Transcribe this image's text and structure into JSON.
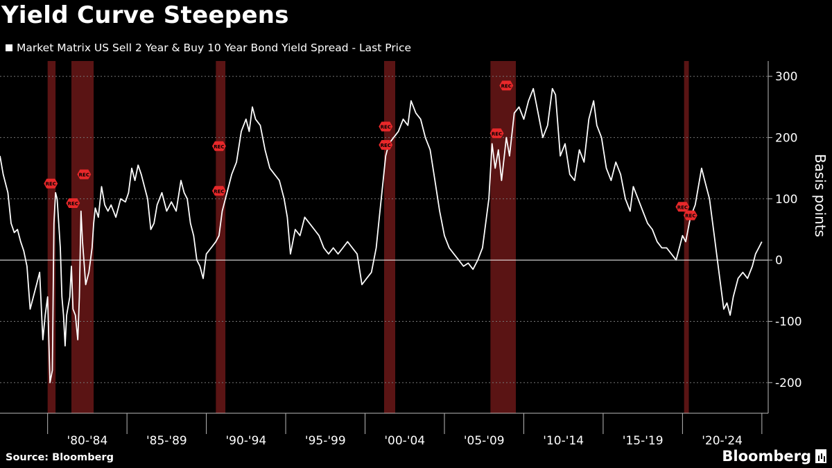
{
  "title": "Yield Curve Steepens",
  "source": "Source: Bloomberg",
  "brand": "Bloomberg",
  "chart_data": {
    "type": "line",
    "title": "Yield Curve Steepens",
    "ylabel": "Basis points",
    "ylim": [
      -250,
      325
    ],
    "yticks": [
      -200,
      -100,
      0,
      100,
      200,
      300
    ],
    "xlim": [
      1977,
      2025.4
    ],
    "x_tick_labels": [
      "'80-'84",
      "'85-'89",
      "'90-'94",
      "'95-'99",
      "'00-'04",
      "'05-'09",
      "'10-'14",
      "'15-'19",
      "'20-'24"
    ],
    "x_tick_boundaries": [
      1980,
      1985,
      1990,
      1995,
      2000,
      2005,
      2010,
      2015,
      2020,
      2025
    ],
    "grid": "horizontal dotted",
    "axis_side": "right",
    "colors": {
      "line": "#ffffff",
      "recession": "#5a1414",
      "marker": "#e8282a",
      "background": "#000000"
    },
    "series": [
      {
        "name": "Market Matrix US Sell 2 Year & Buy 10 Year Bond Yield Spread - Last Price",
        "points": [
          [
            1977.0,
            170
          ],
          [
            1977.2,
            140
          ],
          [
            1977.5,
            110
          ],
          [
            1977.7,
            60
          ],
          [
            1977.9,
            45
          ],
          [
            1978.1,
            50
          ],
          [
            1978.3,
            30
          ],
          [
            1978.5,
            15
          ],
          [
            1978.7,
            -10
          ],
          [
            1978.9,
            -80
          ],
          [
            1979.1,
            -60
          ],
          [
            1979.3,
            -40
          ],
          [
            1979.5,
            -20
          ],
          [
            1979.7,
            -130
          ],
          [
            1979.85,
            -90
          ],
          [
            1980.0,
            -60
          ],
          [
            1980.15,
            -200
          ],
          [
            1980.3,
            -180
          ],
          [
            1980.4,
            60
          ],
          [
            1980.5,
            110
          ],
          [
            1980.6,
            100
          ],
          [
            1980.8,
            20
          ],
          [
            1980.9,
            -60
          ],
          [
            1981.0,
            -90
          ],
          [
            1981.1,
            -140
          ],
          [
            1981.2,
            -90
          ],
          [
            1981.4,
            -60
          ],
          [
            1981.5,
            -10
          ],
          [
            1981.6,
            -80
          ],
          [
            1981.75,
            -90
          ],
          [
            1981.9,
            -130
          ],
          [
            1982.0,
            -60
          ],
          [
            1982.1,
            80
          ],
          [
            1982.2,
            30
          ],
          [
            1982.4,
            -40
          ],
          [
            1982.6,
            -20
          ],
          [
            1982.8,
            20
          ],
          [
            1982.9,
            60
          ],
          [
            1983.0,
            85
          ],
          [
            1983.2,
            70
          ],
          [
            1983.4,
            120
          ],
          [
            1983.6,
            90
          ],
          [
            1983.8,
            80
          ],
          [
            1984.0,
            90
          ],
          [
            1984.3,
            70
          ],
          [
            1984.6,
            100
          ],
          [
            1984.9,
            95
          ],
          [
            1985.1,
            110
          ],
          [
            1985.3,
            150
          ],
          [
            1985.5,
            130
          ],
          [
            1985.7,
            155
          ],
          [
            1985.9,
            140
          ],
          [
            1986.1,
            120
          ],
          [
            1986.3,
            100
          ],
          [
            1986.5,
            50
          ],
          [
            1986.7,
            60
          ],
          [
            1986.9,
            90
          ],
          [
            1987.2,
            110
          ],
          [
            1987.5,
            80
          ],
          [
            1987.8,
            95
          ],
          [
            1988.1,
            80
          ],
          [
            1988.4,
            130
          ],
          [
            1988.6,
            110
          ],
          [
            1988.8,
            100
          ],
          [
            1989.0,
            60
          ],
          [
            1989.2,
            40
          ],
          [
            1989.4,
            0
          ],
          [
            1989.6,
            -10
          ],
          [
            1989.8,
            -30
          ],
          [
            1990.0,
            10
          ],
          [
            1990.3,
            20
          ],
          [
            1990.6,
            30
          ],
          [
            1990.8,
            40
          ],
          [
            1991.0,
            80
          ],
          [
            1991.3,
            110
          ],
          [
            1991.6,
            140
          ],
          [
            1991.9,
            160
          ],
          [
            1992.2,
            210
          ],
          [
            1992.5,
            230
          ],
          [
            1992.7,
            210
          ],
          [
            1992.9,
            250
          ],
          [
            1993.1,
            230
          ],
          [
            1993.4,
            220
          ],
          [
            1993.7,
            180
          ],
          [
            1994.0,
            150
          ],
          [
            1994.3,
            140
          ],
          [
            1994.6,
            130
          ],
          [
            1994.9,
            100
          ],
          [
            1995.1,
            70
          ],
          [
            1995.3,
            10
          ],
          [
            1995.6,
            50
          ],
          [
            1995.9,
            40
          ],
          [
            1996.2,
            70
          ],
          [
            1996.5,
            60
          ],
          [
            1996.8,
            50
          ],
          [
            1997.1,
            40
          ],
          [
            1997.4,
            20
          ],
          [
            1997.7,
            10
          ],
          [
            1998.0,
            20
          ],
          [
            1998.3,
            10
          ],
          [
            1998.6,
            20
          ],
          [
            1998.9,
            30
          ],
          [
            1999.2,
            20
          ],
          [
            1999.5,
            10
          ],
          [
            1999.8,
            -40
          ],
          [
            2000.1,
            -30
          ],
          [
            2000.4,
            -20
          ],
          [
            2000.7,
            20
          ],
          [
            2000.9,
            70
          ],
          [
            2001.1,
            120
          ],
          [
            2001.3,
            170
          ],
          [
            2001.5,
            190
          ],
          [
            2001.8,
            200
          ],
          [
            2002.1,
            210
          ],
          [
            2002.4,
            230
          ],
          [
            2002.7,
            220
          ],
          [
            2002.9,
            260
          ],
          [
            2003.2,
            240
          ],
          [
            2003.5,
            230
          ],
          [
            2003.8,
            200
          ],
          [
            2004.1,
            180
          ],
          [
            2004.4,
            130
          ],
          [
            2004.7,
            80
          ],
          [
            2005.0,
            40
          ],
          [
            2005.3,
            20
          ],
          [
            2005.6,
            10
          ],
          [
            2005.9,
            0
          ],
          [
            2006.2,
            -10
          ],
          [
            2006.5,
            -5
          ],
          [
            2006.8,
            -15
          ],
          [
            2007.1,
            0
          ],
          [
            2007.4,
            20
          ],
          [
            2007.6,
            60
          ],
          [
            2007.8,
            100
          ],
          [
            2008.0,
            190
          ],
          [
            2008.2,
            150
          ],
          [
            2008.4,
            180
          ],
          [
            2008.6,
            130
          ],
          [
            2008.9,
            200
          ],
          [
            2009.1,
            170
          ],
          [
            2009.4,
            240
          ],
          [
            2009.7,
            250
          ],
          [
            2010.0,
            230
          ],
          [
            2010.3,
            260
          ],
          [
            2010.6,
            280
          ],
          [
            2010.9,
            240
          ],
          [
            2011.2,
            200
          ],
          [
            2011.5,
            220
          ],
          [
            2011.8,
            280
          ],
          [
            2012.0,
            270
          ],
          [
            2012.3,
            170
          ],
          [
            2012.6,
            190
          ],
          [
            2012.9,
            140
          ],
          [
            2013.2,
            130
          ],
          [
            2013.5,
            180
          ],
          [
            2013.8,
            160
          ],
          [
            2014.1,
            230
          ],
          [
            2014.4,
            260
          ],
          [
            2014.6,
            220
          ],
          [
            2014.9,
            200
          ],
          [
            2015.2,
            150
          ],
          [
            2015.5,
            130
          ],
          [
            2015.8,
            160
          ],
          [
            2016.1,
            140
          ],
          [
            2016.4,
            100
          ],
          [
            2016.7,
            80
          ],
          [
            2016.9,
            120
          ],
          [
            2017.2,
            100
          ],
          [
            2017.5,
            80
          ],
          [
            2017.8,
            60
          ],
          [
            2018.1,
            50
          ],
          [
            2018.4,
            30
          ],
          [
            2018.7,
            20
          ],
          [
            2019.0,
            20
          ],
          [
            2019.3,
            10
          ],
          [
            2019.6,
            0
          ],
          [
            2019.8,
            20
          ],
          [
            2020.0,
            40
          ],
          [
            2020.2,
            30
          ],
          [
            2020.5,
            70
          ],
          [
            2020.8,
            90
          ],
          [
            2021.0,
            120
          ],
          [
            2021.2,
            150
          ],
          [
            2021.4,
            130
          ],
          [
            2021.7,
            100
          ],
          [
            2022.0,
            40
          ],
          [
            2022.2,
            0
          ],
          [
            2022.4,
            -40
          ],
          [
            2022.6,
            -80
          ],
          [
            2022.8,
            -70
          ],
          [
            2023.0,
            -90
          ],
          [
            2023.2,
            -60
          ],
          [
            2023.5,
            -30
          ],
          [
            2023.8,
            -20
          ],
          [
            2024.1,
            -30
          ],
          [
            2024.4,
            -10
          ],
          [
            2024.6,
            10
          ],
          [
            2024.8,
            20
          ],
          [
            2025.0,
            30
          ]
        ]
      }
    ],
    "recessions": [
      [
        1980.0,
        1980.5
      ],
      [
        1981.5,
        1982.9
      ],
      [
        1990.6,
        1991.2
      ],
      [
        2001.2,
        2001.9
      ],
      [
        2007.9,
        2009.5
      ],
      [
        2020.1,
        2020.4
      ]
    ],
    "rec_markers": [
      {
        "x": 1980.2,
        "y": 125,
        "label": "REC"
      },
      [
        1981.6,
        93,
        "REC"
      ],
      [
        1982.3,
        140,
        "REC"
      ],
      {
        "x": 1990.8,
        "y": 186,
        "label": "REC"
      },
      {
        "x": 1990.8,
        "y": 113,
        "label": "REC"
      },
      {
        "x": 2001.3,
        "y": 218,
        "label": "REC"
      },
      {
        "x": 2001.3,
        "y": 188,
        "label": "REC"
      },
      {
        "x": 2008.3,
        "y": 207,
        "label": "REC"
      },
      {
        "x": 2008.9,
        "y": 285,
        "label": "REC"
      },
      {
        "x": 2020.0,
        "y": 87,
        "label": "REC"
      },
      {
        "x": 2020.5,
        "y": 73,
        "label": "REC"
      }
    ]
  }
}
